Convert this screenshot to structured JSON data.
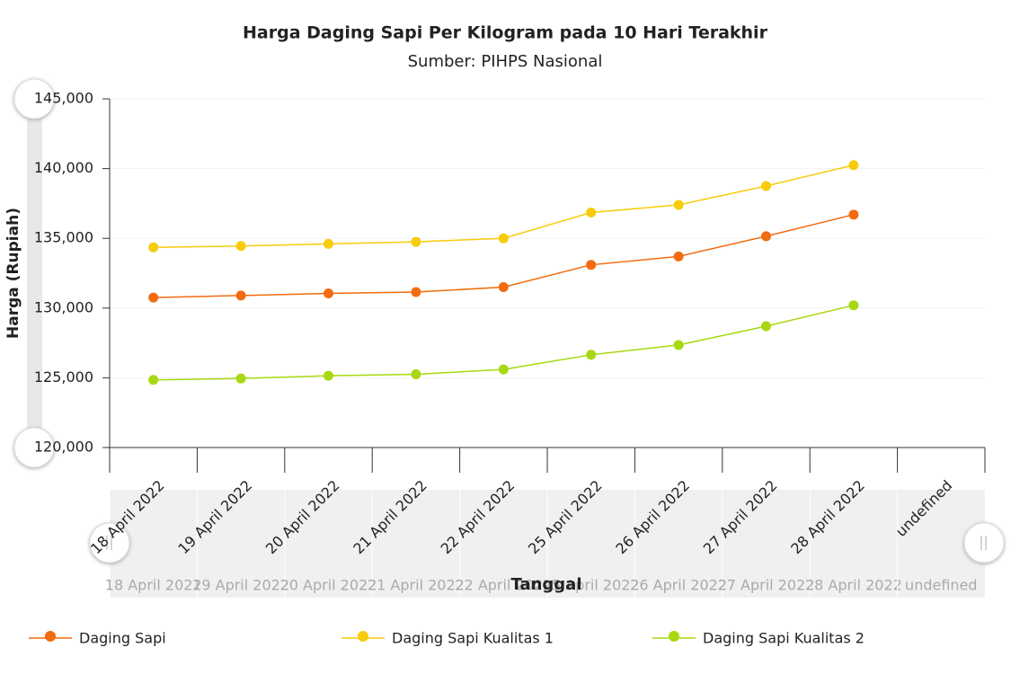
{
  "chart_data": {
    "type": "line",
    "title": "Harga Daging Sapi Per Kilogram pada 10 Hari Terakhir",
    "subtitle": "Sumber: PIHPS Nasional",
    "x_label": "Tanggal",
    "y_label": "Harga (Rupiah)",
    "categories": [
      "18 April 2022",
      "19 April 2022",
      "20 April 2022",
      "21 April 2022",
      "22 April 2022",
      "25 April 2022",
      "26 April 2022",
      "27 April 2022",
      "28 April 2022",
      "undefined"
    ],
    "series": [
      {
        "name": "Daging Sapi",
        "color": "#f26b0f",
        "values": [
          130750,
          130900,
          131050,
          131150,
          131500,
          133100,
          133700,
          135150,
          136700,
          null
        ]
      },
      {
        "name": "Daging Sapi Kualitas 1",
        "color": "#f7cc0a",
        "values": [
          134350,
          134450,
          134600,
          134750,
          135000,
          136850,
          137400,
          138750,
          140250,
          null
        ]
      },
      {
        "name": "Daging Sapi Kualitas 2",
        "color": "#a8d80f",
        "values": [
          124850,
          124950,
          125150,
          125250,
          125600,
          126650,
          127350,
          128700,
          130200,
          null
        ]
      }
    ],
    "ylim": [
      120000,
      145000
    ],
    "yticks": [
      {
        "value": 120000,
        "label": "120,000"
      },
      {
        "value": 125000,
        "label": "125,000"
      },
      {
        "value": 130000,
        "label": "130,000"
      },
      {
        "value": 135000,
        "label": "135,000"
      },
      {
        "value": 140000,
        "label": "140,000"
      },
      {
        "value": 145000,
        "label": "145,000"
      }
    ],
    "grid": true
  }
}
